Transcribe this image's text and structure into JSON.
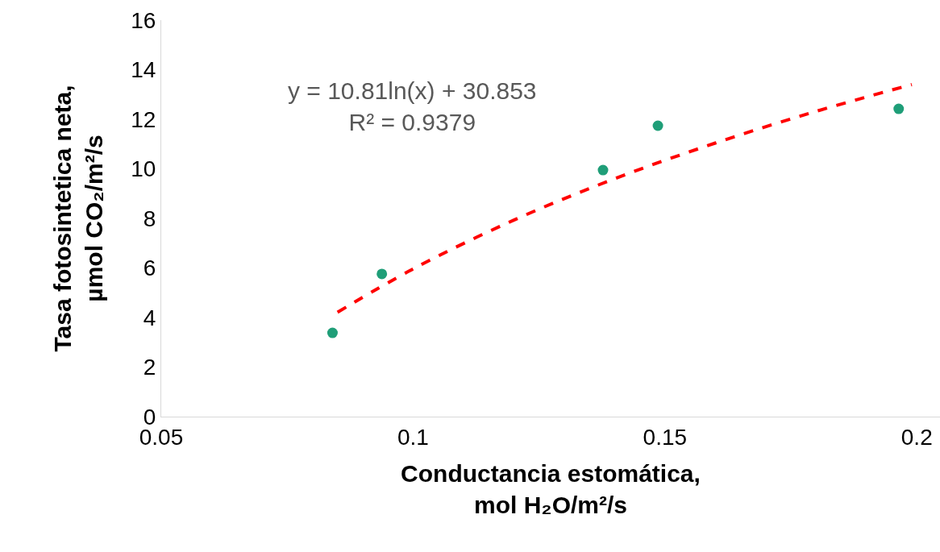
{
  "chart_data": {
    "type": "scatter",
    "xlabel": "Conductancia estomática,\nmol H₂O/m²/s",
    "ylabel": "Tasa fotosintetica neta,\nµmol CO₂/m²/s",
    "xlim": [
      0.05,
      0.2046
    ],
    "xticks": [
      0.05,
      0.1,
      0.15,
      0.2
    ],
    "ylim": [
      0,
      16
    ],
    "yticks": [
      0,
      2,
      4,
      6,
      8,
      10,
      12,
      14,
      16
    ],
    "grid": false,
    "series": [
      {
        "marker": "circle",
        "color": "#1f9e78",
        "x": [
          0.084,
          0.0938,
          0.1377,
          0.1486,
          0.1964
        ],
        "values": [
          3.38,
          5.76,
          9.95,
          11.74,
          12.42
        ]
      },
      {
        "type": "line",
        "line_style": "dashed",
        "color": "#ff0000",
        "x": [
          0.085,
          0.1,
          0.12,
          0.14,
          0.16,
          0.18,
          0.199
        ],
        "values": [
          4.21,
          5.96,
          7.93,
          9.6,
          11.04,
          12.32,
          13.4
        ]
      }
    ],
    "annotations": [
      "y = 10.81ln(x) + 30.853\nR² = 0.9379"
    ]
  }
}
